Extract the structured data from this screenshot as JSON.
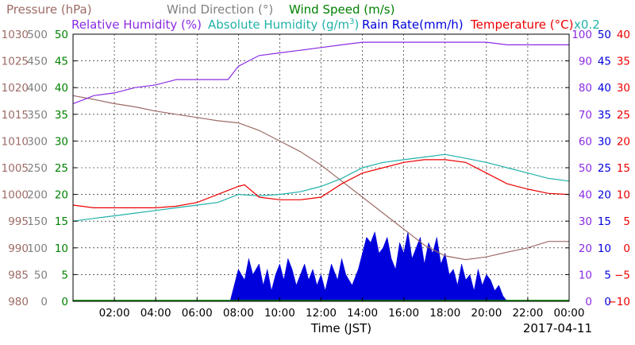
{
  "chart_data": {
    "type": "line",
    "legend": [
      {
        "label": "Pressure (hPa)",
        "color": "#9c6b66"
      },
      {
        "label": "Wind Direction (°)",
        "color": "#808080"
      },
      {
        "label": "Wind Speed (m/s)",
        "color": "#008000"
      },
      {
        "label": "Relative Humidity (%)",
        "color": "#8a2be2"
      },
      {
        "label": "Absolute Humidity (g/m",
        "sup": "3",
        "tail": ")",
        "color": "#20b2aa"
      },
      {
        "label": "Rain Rate(mm/h)",
        "color": "#0000dd"
      },
      {
        "label": "Temperature (°C)",
        "color": "#ee0000"
      },
      {
        "label": "x0.2",
        "color": "#20b2aa"
      }
    ],
    "xlabel": "Time (JST)",
    "date": "2017-04-11",
    "x_ticks": [
      "02:00",
      "04:00",
      "06:00",
      "08:00",
      "10:00",
      "12:00",
      "14:00",
      "16:00",
      "18:00",
      "20:00",
      "22:00",
      "00:00"
    ],
    "xlim": [
      0,
      24
    ],
    "grid": true,
    "axes": [
      {
        "name": "pressure",
        "color": "#9c6b66",
        "side": "left",
        "ticks": [
          "980",
          "985",
          "990",
          "995",
          "1000",
          "1005",
          "1010",
          "1015",
          "1020",
          "1025",
          "1030"
        ],
        "ylim": [
          980,
          1030
        ]
      },
      {
        "name": "wind_direction",
        "color": "#808080",
        "side": "left",
        "ticks": [
          "0",
          "50",
          "100",
          "150",
          "200",
          "250",
          "300",
          "350",
          "400",
          "450",
          "500"
        ],
        "ylim": [
          0,
          500
        ]
      },
      {
        "name": "wind_speed",
        "color": "#008000",
        "side": "left",
        "ticks": [
          "0",
          "5",
          "10",
          "15",
          "20",
          "25",
          "30",
          "35",
          "40",
          "45",
          "50"
        ],
        "ylim": [
          0,
          50
        ]
      },
      {
        "name": "humidity",
        "color": "#8a2be2",
        "side": "right",
        "ticks": [
          "0",
          "10",
          "20",
          "30",
          "40",
          "50",
          "60",
          "70",
          "80",
          "90",
          "100"
        ],
        "ylim": [
          0,
          100
        ]
      },
      {
        "name": "rain",
        "color": "#0000dd",
        "side": "right",
        "ticks": [
          "0",
          "5",
          "10",
          "15",
          "20",
          "25",
          "30",
          "35",
          "40",
          "45",
          "50"
        ],
        "ylim": [
          0,
          50
        ]
      },
      {
        "name": "temperature",
        "color": "#ee0000",
        "side": "right",
        "ticks": [
          "−10",
          "−5",
          "0",
          "5",
          "10",
          "15",
          "20",
          "25",
          "30",
          "35",
          "40"
        ],
        "ylim": [
          -10,
          40
        ]
      }
    ],
    "series": [
      {
        "name": "Pressure (hPa)",
        "axis": "pressure",
        "color": "#9c6b66",
        "x": [
          0,
          1,
          2,
          3,
          4,
          5,
          6,
          7,
          8,
          9,
          10,
          11,
          12,
          13,
          14,
          15,
          16,
          17,
          18,
          19,
          20,
          21,
          22,
          23,
          24
        ],
        "y": [
          1018.5,
          1017.8,
          1017,
          1016.4,
          1015.6,
          1015.0,
          1014.4,
          1013.8,
          1013.4,
          1012,
          1010,
          1008,
          1005.5,
          1002.5,
          999.5,
          996.5,
          993.5,
          990.5,
          988.5,
          987.8,
          988.3,
          989.2,
          990,
          991.2,
          991.2
        ]
      },
      {
        "name": "Relative Humidity (%)",
        "axis": "humidity",
        "color": "#8a2be2",
        "x": [
          0,
          0.7,
          1,
          2,
          3,
          4,
          5,
          6,
          7,
          7.5,
          8,
          9,
          10,
          11,
          12,
          13,
          14,
          15,
          16,
          17,
          18,
          19,
          20,
          21,
          22,
          23,
          24
        ],
        "y": [
          74,
          76,
          77,
          78,
          80,
          81,
          83,
          83,
          83,
          83,
          88,
          92,
          93,
          94,
          95,
          96,
          97,
          97,
          97,
          97,
          97,
          97,
          97,
          96,
          96,
          96,
          96
        ]
      },
      {
        "name": "Absolute Humidity (g/m3)",
        "axis": "humidity",
        "color": "#20b2aa",
        "x": [
          0,
          1,
          2,
          3,
          4,
          5,
          6,
          7,
          8,
          9,
          10,
          11,
          12,
          13,
          14,
          15,
          16,
          17,
          18,
          19,
          20,
          21,
          22,
          23,
          24
        ],
        "y": [
          30,
          31,
          32,
          33,
          34,
          35,
          36,
          37,
          40,
          39.5,
          40,
          41,
          43,
          46,
          50,
          52,
          53,
          54,
          55,
          53.5,
          52,
          50,
          48,
          46,
          45
        ]
      },
      {
        "name": "Temperature (°C)",
        "axis": "temperature",
        "color": "#ee0000",
        "x": [
          0,
          1,
          2,
          3,
          4,
          5,
          6,
          7,
          8,
          8.3,
          9,
          10,
          11,
          12,
          13,
          14,
          15,
          16,
          17,
          18,
          19,
          20,
          21,
          22,
          23,
          24
        ],
        "y": [
          8,
          7.5,
          7.5,
          7.5,
          7.5,
          7.8,
          8.5,
          10,
          11.5,
          11.8,
          9.5,
          9,
          9,
          9.5,
          12,
          14,
          15,
          16,
          16.5,
          16.5,
          16,
          14,
          12,
          11,
          10.2,
          10
        ]
      }
    ],
    "rain": {
      "name": "Rain Rate(mm/h)",
      "axis": "rain",
      "color": "#0000dd",
      "x": [
        7.6,
        7.8,
        8.0,
        8.3,
        8.5,
        8.7,
        9.0,
        9.2,
        9.4,
        9.6,
        9.8,
        10.0,
        10.2,
        10.4,
        10.6,
        10.8,
        11.0,
        11.2,
        11.4,
        11.6,
        11.8,
        12.0,
        12.2,
        12.5,
        12.8,
        13.0,
        13.2,
        13.5,
        13.8,
        14.0,
        14.2,
        14.4,
        14.6,
        14.8,
        15.0,
        15.2,
        15.4,
        15.6,
        15.8,
        16.0,
        16.2,
        16.4,
        16.6,
        16.8,
        17.0,
        17.2,
        17.4,
        17.6,
        17.8,
        18.0,
        18.2,
        18.4,
        18.6,
        18.8,
        19.0,
        19.2,
        19.4,
        19.6,
        19.8,
        20.0,
        20.2,
        20.4,
        20.6,
        20.8,
        21.0
      ],
      "y": [
        0,
        3,
        6,
        4,
        8,
        5,
        7,
        3,
        6,
        2,
        5,
        7,
        4,
        8,
        6,
        3,
        5,
        7,
        4,
        6,
        3,
        5,
        2,
        7,
        4,
        8,
        5,
        3,
        6,
        9,
        12,
        11,
        13,
        9,
        10,
        12,
        8,
        6,
        11,
        9,
        13,
        8,
        10,
        12,
        7,
        11,
        9,
        12,
        7,
        9,
        5,
        6,
        3,
        7,
        4,
        5,
        2,
        6,
        3,
        5,
        4,
        2,
        3,
        1,
        0
      ]
    }
  }
}
